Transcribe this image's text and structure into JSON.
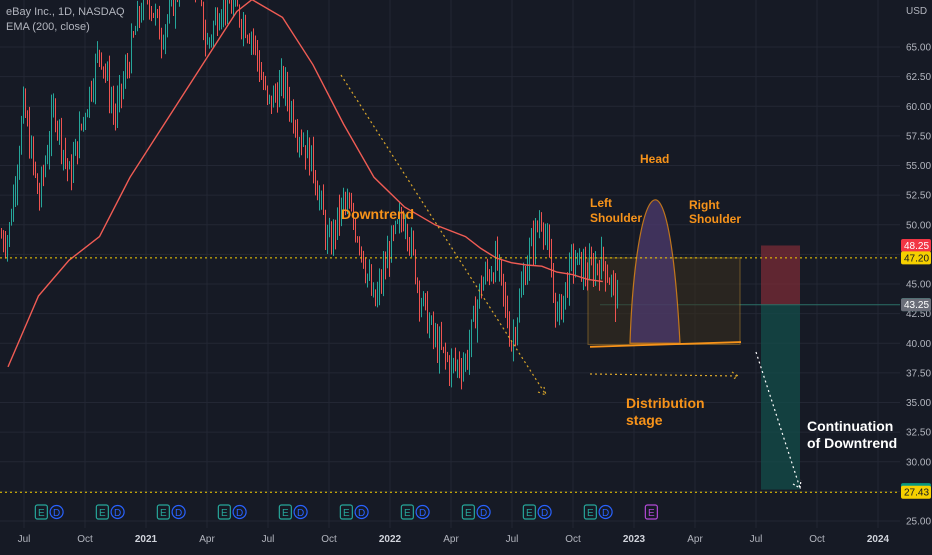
{
  "header": {
    "symbol_line": "eBay Inc., 1D, NASDAQ",
    "indicator_line": "EMA (200, close)"
  },
  "colors": {
    "background": "#161a25",
    "up_candle": "#26a69a",
    "down_candle": "#ef5350",
    "ema": "#f05c54",
    "annotation": "#f7931a",
    "stop_zone": "#7a2b35",
    "target_zone": "#134e49",
    "level_line": "#f5d000",
    "pattern_box": "#3a2f1c",
    "head_fill": "#4d3a6e"
  },
  "chart_data": {
    "type": "candlestick",
    "title": "eBay Inc., 1D, NASDAQ",
    "currency": "USD",
    "y_range": [
      24.5,
      69.5
    ],
    "y_ticks": [
      25.0,
      27.5,
      30.0,
      32.5,
      35.0,
      37.5,
      40.0,
      42.5,
      45.0,
      47.5,
      50.0,
      52.5,
      55.0,
      57.5,
      60.0,
      62.5,
      65.0
    ],
    "y_tick_labels": [
      "25.00",
      "27.50",
      "30.00",
      "32.50",
      "35.00",
      "37.50",
      "40.00",
      "42.50",
      "45.00",
      "47.50",
      "50.00",
      "52.50",
      "55.00",
      "57.50",
      "60.00",
      "62.50",
      "65.00"
    ],
    "x_tick_labels": [
      {
        "label": "Jul",
        "bold": false
      },
      {
        "label": "Oct",
        "bold": false
      },
      {
        "label": "2021",
        "bold": true
      },
      {
        "label": "Apr",
        "bold": false
      },
      {
        "label": "Jul",
        "bold": false
      },
      {
        "label": "Oct",
        "bold": false
      },
      {
        "label": "2022",
        "bold": true
      },
      {
        "label": "Apr",
        "bold": false
      },
      {
        "label": "Jul",
        "bold": false
      },
      {
        "label": "Oct",
        "bold": false
      },
      {
        "label": "2023",
        "bold": true
      },
      {
        "label": "Apr",
        "bold": false
      },
      {
        "label": "Jul",
        "bold": false
      },
      {
        "label": "Oct",
        "bold": false
      },
      {
        "label": "2024",
        "bold": true
      }
    ],
    "price_path": [
      [
        0,
        49
      ],
      [
        0.25,
        60
      ],
      [
        0.5,
        52
      ],
      [
        0.75,
        60
      ],
      [
        1,
        54
      ],
      [
        1.5,
        65
      ],
      [
        1.75,
        59
      ],
      [
        2.25,
        70
      ],
      [
        2.5,
        66
      ],
      [
        3,
        73
      ],
      [
        3.25,
        65
      ],
      [
        3.5,
        69
      ],
      [
        3.75,
        68
      ],
      [
        4,
        66
      ],
      [
        4.25,
        60
      ],
      [
        4.5,
        62
      ],
      [
        4.75,
        58
      ],
      [
        5,
        55
      ],
      [
        5.25,
        48
      ],
      [
        5.5,
        52
      ],
      [
        5.75,
        49
      ],
      [
        6,
        43
      ],
      [
        6.25,
        48
      ],
      [
        6.5,
        51
      ],
      [
        6.75,
        44
      ],
      [
        7,
        40
      ],
      [
        7.25,
        38
      ],
      [
        7.5,
        38.5
      ],
      [
        7.75,
        45
      ],
      [
        8,
        47
      ],
      [
        8.25,
        40
      ],
      [
        8.5,
        47
      ],
      [
        8.75,
        51
      ],
      [
        9,
        42
      ],
      [
        9.25,
        47
      ],
      [
        9.5,
        46
      ],
      [
        9.75,
        47
      ],
      [
        10,
        43.25
      ]
    ],
    "ema_200": [
      [
        0,
        38
      ],
      [
        0.5,
        44
      ],
      [
        1,
        47
      ],
      [
        1.5,
        49
      ],
      [
        2,
        54
      ],
      [
        2.5,
        58
      ],
      [
        3,
        62
      ],
      [
        3.5,
        66
      ],
      [
        3.75,
        68
      ],
      [
        4,
        69
      ],
      [
        4.5,
        67.5
      ],
      [
        5,
        63.5
      ],
      [
        5.5,
        58.5
      ],
      [
        6,
        54
      ],
      [
        6.5,
        51.5
      ],
      [
        7,
        50
      ],
      [
        7.5,
        49
      ],
      [
        7.75,
        48
      ],
      [
        8,
        47.2
      ],
      [
        8.25,
        46.8
      ],
      [
        8.5,
        46.6
      ],
      [
        8.75,
        46.5
      ],
      [
        9,
        46
      ],
      [
        9.25,
        45.8
      ],
      [
        9.5,
        45.4
      ],
      [
        9.75,
        45.2
      ]
    ],
    "earnings_markers": [
      {
        "label": "E",
        "x": 0.35
      },
      {
        "label": "D",
        "x": 0.6
      },
      {
        "label": "E",
        "x": 1.35
      },
      {
        "label": "D",
        "x": 1.6
      },
      {
        "label": "E",
        "x": 2.35
      },
      {
        "label": "D",
        "x": 2.6
      },
      {
        "label": "E",
        "x": 3.35
      },
      {
        "label": "D",
        "x": 3.6
      },
      {
        "label": "E",
        "x": 4.35
      },
      {
        "label": "D",
        "x": 4.6
      },
      {
        "label": "E",
        "x": 5.35
      },
      {
        "label": "D",
        "x": 5.6
      },
      {
        "label": "E",
        "x": 6.35
      },
      {
        "label": "D",
        "x": 6.6
      },
      {
        "label": "E",
        "x": 7.35
      },
      {
        "label": "D",
        "x": 7.6
      },
      {
        "label": "E",
        "x": 8.35
      },
      {
        "label": "D",
        "x": 8.6
      },
      {
        "label": "E",
        "x": 9.35
      },
      {
        "label": "D",
        "x": 9.6
      },
      {
        "label": "E",
        "x": 10.35,
        "upcoming": true
      }
    ],
    "levels": [
      47.2,
      27.43
    ],
    "price_labels": [
      {
        "value": "48.25",
        "bg": "#f23645",
        "fg": "#ffffff",
        "y": 48.25
      },
      {
        "value": "47.20",
        "bg": "#f5d000",
        "fg": "#131722",
        "y": 47.2
      },
      {
        "value": "43.26",
        "bg": "#089981",
        "fg": "#ffffff",
        "y": 43.26
      },
      {
        "value": "43.25",
        "bg": "#6a6d78",
        "fg": "#ffffff",
        "y": 43.25
      },
      {
        "value": "27.65",
        "bg": "#089981",
        "fg": "#ffffff",
        "y": 27.65
      },
      {
        "value": "27.43",
        "bg": "#f5d000",
        "fg": "#131722",
        "y": 27.43
      }
    ],
    "position": {
      "entry": 43.25,
      "stop": 48.25,
      "target": 27.65
    },
    "annotations": {
      "downtrend": "Downtrend",
      "head": "Head",
      "left_shoulder_1": "Left",
      "left_shoulder_2": "Shoulder",
      "right_shoulder_1": "Right",
      "right_shoulder_2": "Shoulder",
      "distribution_1": "Distribution",
      "distribution_2": "stage",
      "continuation_1": "Continuation",
      "continuation_2": "of Downtrend"
    }
  }
}
